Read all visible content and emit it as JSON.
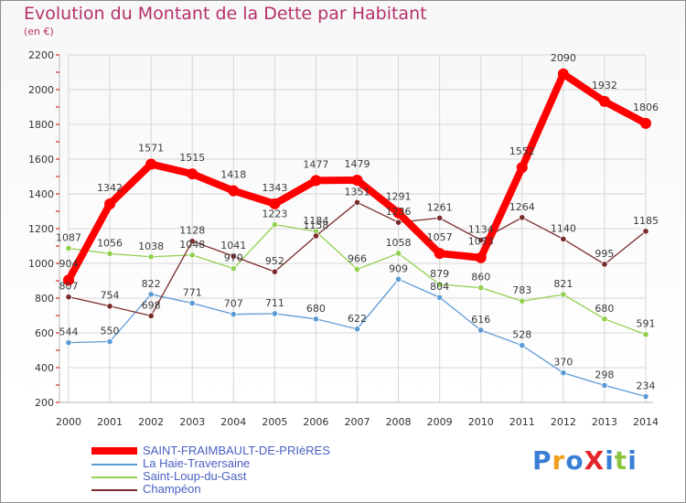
{
  "header": {
    "title": "Evolution du Montant de la Dette par Habitant",
    "unit": "(en €)"
  },
  "logo": {
    "text": "ProXiti"
  },
  "chart_data": {
    "type": "line",
    "title": "Evolution du Montant de la Dette par Habitant",
    "subtitle": "(en €)",
    "xlabel": "",
    "ylabel": "",
    "x": [
      "2000",
      "2001",
      "2002",
      "2003",
      "2004",
      "2005",
      "2006",
      "2007",
      "2008",
      "2009",
      "2010",
      "2011",
      "2012",
      "2013",
      "2014"
    ],
    "ylim": [
      200,
      2200
    ],
    "yticks": [
      200,
      400,
      600,
      800,
      1000,
      1200,
      1400,
      1600,
      1800,
      2000,
      2200
    ],
    "grid": true,
    "legend_position": "bottom-left",
    "series": [
      {
        "name": "SAINT-FRAIMBAULT-DE-PRIèRES",
        "color": "#ff0000",
        "values": [
          904,
          1342,
          1571,
          1515,
          1418,
          1343,
          1477,
          1479,
          1291,
          1057,
          1033,
          1552,
          2090,
          1932,
          1806
        ]
      },
      {
        "name": "La Haie-Traversaine",
        "color": "#5b9bd5",
        "values": [
          544,
          550,
          822,
          771,
          707,
          711,
          680,
          622,
          909,
          804,
          616,
          528,
          370,
          298,
          234
        ]
      },
      {
        "name": "Saint-Loup-du-Gast",
        "color": "#92d050",
        "values": [
          1087,
          1056,
          1038,
          1048,
          970,
          1223,
          1184,
          966,
          1058,
          879,
          860,
          783,
          821,
          680,
          591
        ]
      },
      {
        "name": "Champéon",
        "color": "#7b2a2a",
        "values": [
          807,
          754,
          698,
          1128,
          1041,
          952,
          1158,
          1351,
          1236,
          1261,
          1134,
          1264,
          1140,
          995,
          1185
        ]
      }
    ]
  }
}
